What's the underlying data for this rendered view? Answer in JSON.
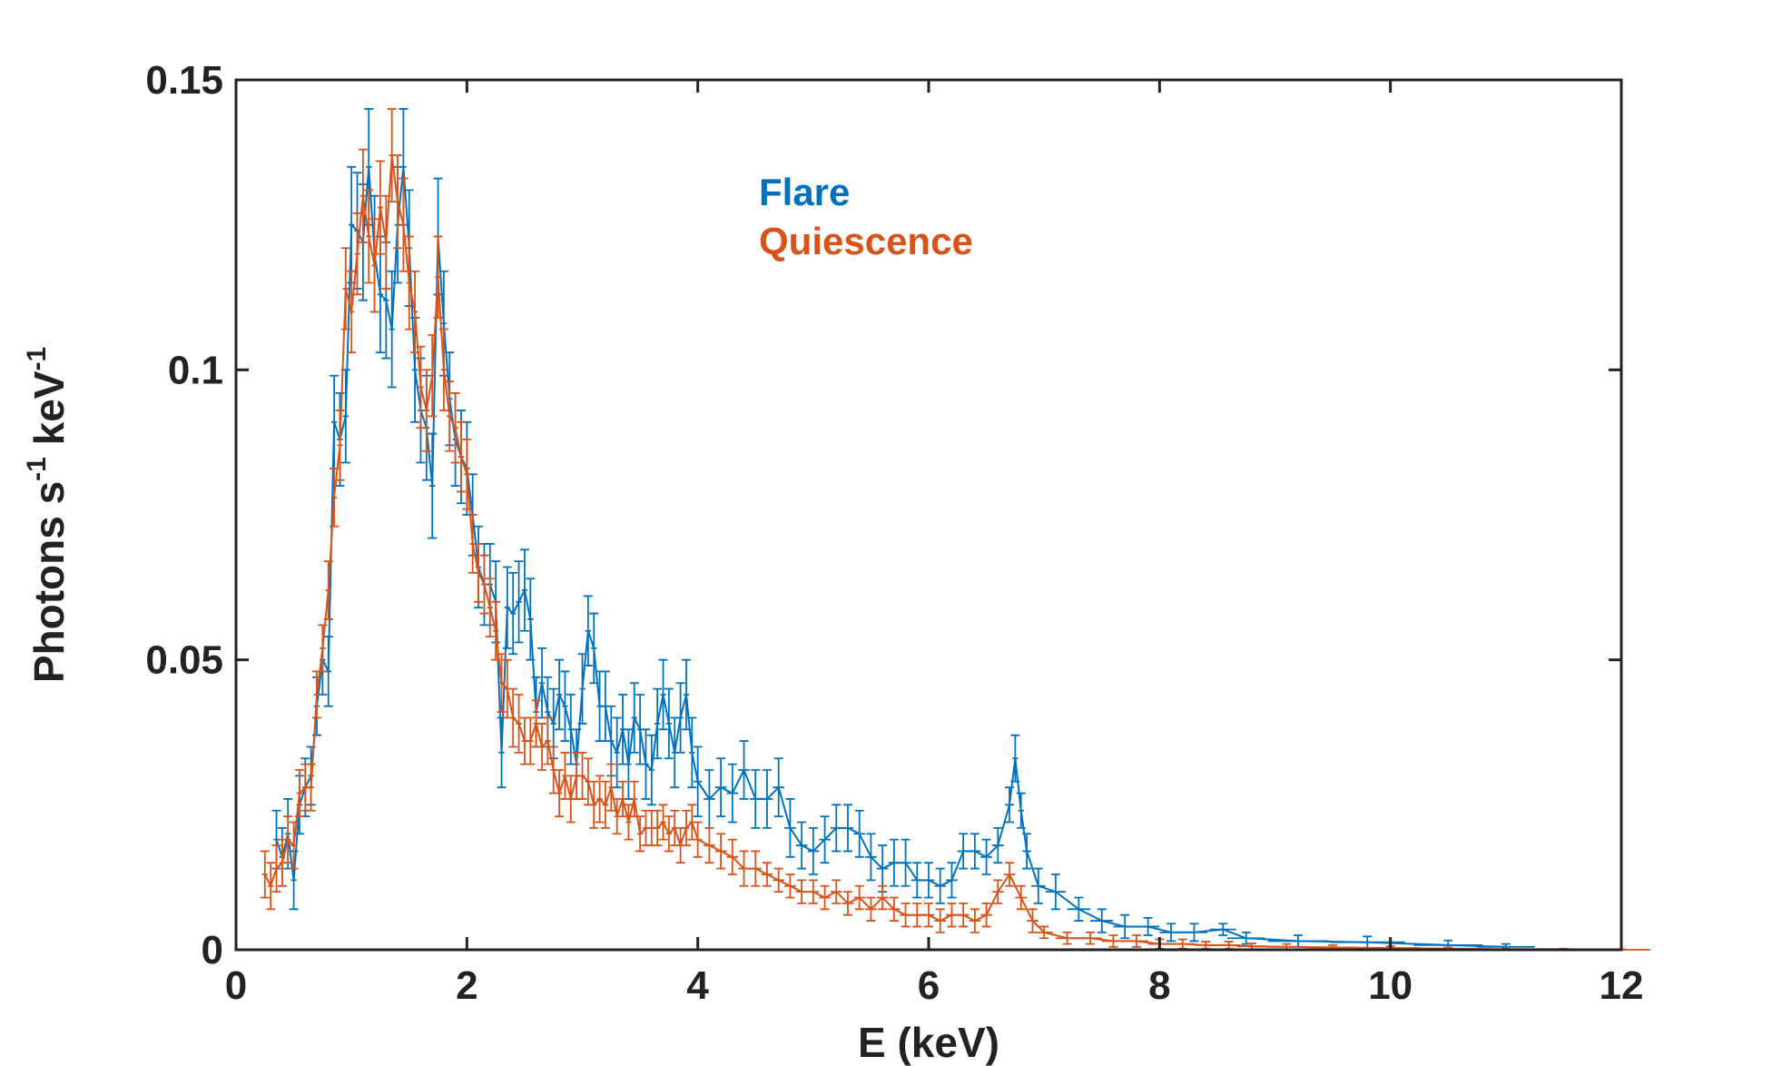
{
  "chart_data": {
    "type": "line",
    "title": "",
    "xlabel": "E (keV)",
    "ylabel": {
      "base": "Photons s",
      "sup1": "-1",
      "mid": " keV",
      "sup2": "-1"
    },
    "xlim": [
      0,
      12
    ],
    "ylim": [
      0,
      0.15
    ],
    "xticks": [
      0,
      2,
      4,
      6,
      8,
      10,
      12
    ],
    "xtick_labels": [
      "0",
      "2",
      "4",
      "6",
      "8",
      "10",
      "12"
    ],
    "yticks": [
      0,
      0.05,
      0.1,
      0.15
    ],
    "ytick_labels": [
      "0",
      "0.05",
      "0.1",
      "0.15"
    ],
    "grid": false,
    "legend_position": "top-center",
    "series": [
      {
        "name": "Flare",
        "color": "#0072BD",
        "points": [
          [
            0.35,
            0.019,
            0.005
          ],
          [
            0.4,
            0.016,
            0.005
          ],
          [
            0.45,
            0.02,
            0.006
          ],
          [
            0.5,
            0.012,
            0.005
          ],
          [
            0.55,
            0.025,
            0.005
          ],
          [
            0.6,
            0.028,
            0.005
          ],
          [
            0.65,
            0.03,
            0.005
          ],
          [
            0.7,
            0.042,
            0.005
          ],
          [
            0.75,
            0.05,
            0.006
          ],
          [
            0.8,
            0.048,
            0.006
          ],
          [
            0.85,
            0.091,
            0.008
          ],
          [
            0.9,
            0.088,
            0.008
          ],
          [
            0.95,
            0.092,
            0.008
          ],
          [
            1.0,
            0.125,
            0.01
          ],
          [
            1.05,
            0.124,
            0.01
          ],
          [
            1.1,
            0.122,
            0.01
          ],
          [
            1.15,
            0.135,
            0.01
          ],
          [
            1.2,
            0.12,
            0.01
          ],
          [
            1.25,
            0.113,
            0.01
          ],
          [
            1.3,
            0.112,
            0.01
          ],
          [
            1.35,
            0.107,
            0.01
          ],
          [
            1.4,
            0.125,
            0.01
          ],
          [
            1.45,
            0.135,
            0.01
          ],
          [
            1.5,
            0.121,
            0.01
          ],
          [
            1.55,
            0.1,
            0.009
          ],
          [
            1.6,
            0.093,
            0.009
          ],
          [
            1.65,
            0.09,
            0.009
          ],
          [
            1.7,
            0.08,
            0.009
          ],
          [
            1.75,
            0.123,
            0.01
          ],
          [
            1.8,
            0.108,
            0.009
          ],
          [
            1.85,
            0.095,
            0.008
          ],
          [
            1.9,
            0.088,
            0.008
          ],
          [
            1.95,
            0.085,
            0.008
          ],
          [
            2.0,
            0.083,
            0.008
          ],
          [
            2.05,
            0.075,
            0.007
          ],
          [
            2.1,
            0.066,
            0.007
          ],
          [
            2.15,
            0.063,
            0.007
          ],
          [
            2.2,
            0.063,
            0.007
          ],
          [
            2.25,
            0.06,
            0.007
          ],
          [
            2.3,
            0.034,
            0.006
          ],
          [
            2.35,
            0.059,
            0.007
          ],
          [
            2.4,
            0.058,
            0.007
          ],
          [
            2.45,
            0.06,
            0.007
          ],
          [
            2.5,
            0.062,
            0.007
          ],
          [
            2.55,
            0.057,
            0.007
          ],
          [
            2.6,
            0.041,
            0.006
          ],
          [
            2.65,
            0.046,
            0.006
          ],
          [
            2.7,
            0.041,
            0.006
          ],
          [
            2.75,
            0.039,
            0.006
          ],
          [
            2.8,
            0.044,
            0.006
          ],
          [
            2.85,
            0.042,
            0.006
          ],
          [
            2.9,
            0.038,
            0.006
          ],
          [
            2.95,
            0.032,
            0.006
          ],
          [
            3.0,
            0.045,
            0.006
          ],
          [
            3.05,
            0.055,
            0.006
          ],
          [
            3.1,
            0.052,
            0.006
          ],
          [
            3.15,
            0.042,
            0.006
          ],
          [
            3.2,
            0.042,
            0.006
          ],
          [
            3.25,
            0.036,
            0.006
          ],
          [
            3.3,
            0.034,
            0.006
          ],
          [
            3.35,
            0.038,
            0.006
          ],
          [
            3.4,
            0.032,
            0.006
          ],
          [
            3.45,
            0.04,
            0.006
          ],
          [
            3.5,
            0.038,
            0.006
          ],
          [
            3.55,
            0.032,
            0.006
          ],
          [
            3.6,
            0.031,
            0.006
          ],
          [
            3.65,
            0.039,
            0.006
          ],
          [
            3.7,
            0.044,
            0.006
          ],
          [
            3.75,
            0.039,
            0.006
          ],
          [
            3.8,
            0.034,
            0.006
          ],
          [
            3.85,
            0.04,
            0.006
          ],
          [
            3.9,
            0.044,
            0.006
          ],
          [
            3.95,
            0.034,
            0.006
          ],
          [
            4.0,
            0.029,
            0.006
          ],
          [
            4.1,
            0.026,
            0.005
          ],
          [
            4.2,
            0.028,
            0.005
          ],
          [
            4.3,
            0.027,
            0.005
          ],
          [
            4.4,
            0.031,
            0.005
          ],
          [
            4.5,
            0.026,
            0.005
          ],
          [
            4.6,
            0.026,
            0.005
          ],
          [
            4.7,
            0.028,
            0.005
          ],
          [
            4.8,
            0.021,
            0.005
          ],
          [
            4.9,
            0.018,
            0.004
          ],
          [
            5.0,
            0.017,
            0.004
          ],
          [
            5.1,
            0.019,
            0.004
          ],
          [
            5.2,
            0.021,
            0.004
          ],
          [
            5.3,
            0.021,
            0.004
          ],
          [
            5.4,
            0.02,
            0.004
          ],
          [
            5.5,
            0.016,
            0.004
          ],
          [
            5.6,
            0.014,
            0.004
          ],
          [
            5.7,
            0.015,
            0.004
          ],
          [
            5.8,
            0.015,
            0.004
          ],
          [
            5.9,
            0.012,
            0.003
          ],
          [
            6.0,
            0.012,
            0.003
          ],
          [
            6.1,
            0.011,
            0.003
          ],
          [
            6.2,
            0.012,
            0.003
          ],
          [
            6.3,
            0.017,
            0.003
          ],
          [
            6.4,
            0.017,
            0.003
          ],
          [
            6.5,
            0.016,
            0.003
          ],
          [
            6.6,
            0.018,
            0.003
          ],
          [
            6.7,
            0.025,
            0.003
          ],
          [
            6.75,
            0.033,
            0.004
          ],
          [
            6.8,
            0.024,
            0.003
          ],
          [
            6.85,
            0.017,
            0.003
          ],
          [
            6.95,
            0.011,
            0.003
          ],
          [
            7.1,
            0.01,
            0.003
          ],
          [
            7.3,
            0.007,
            0.002
          ],
          [
            7.5,
            0.005,
            0.002
          ],
          [
            7.7,
            0.004,
            0.002
          ],
          [
            7.9,
            0.004,
            0.0015
          ],
          [
            8.1,
            0.003,
            0.0015
          ],
          [
            8.3,
            0.003,
            0.0015
          ],
          [
            8.55,
            0.0035,
            0.001
          ],
          [
            8.75,
            0.002,
            0.001
          ],
          [
            9.2,
            0.0015,
            0.001
          ],
          [
            9.8,
            0.0013,
            0.001
          ],
          [
            10.5,
            0.0008,
            0.0008
          ],
          [
            11.0,
            0.0005,
            0.0005
          ]
        ]
      },
      {
        "name": "Quiescence",
        "color": "#D95319",
        "points": [
          [
            0.25,
            0.013,
            0.004
          ],
          [
            0.3,
            0.011,
            0.004
          ],
          [
            0.35,
            0.014,
            0.004
          ],
          [
            0.4,
            0.015,
            0.004
          ],
          [
            0.45,
            0.019,
            0.004
          ],
          [
            0.5,
            0.018,
            0.004
          ],
          [
            0.55,
            0.027,
            0.004
          ],
          [
            0.6,
            0.028,
            0.004
          ],
          [
            0.65,
            0.028,
            0.004
          ],
          [
            0.7,
            0.044,
            0.004
          ],
          [
            0.75,
            0.052,
            0.004
          ],
          [
            0.8,
            0.062,
            0.005
          ],
          [
            0.85,
            0.078,
            0.005
          ],
          [
            0.9,
            0.087,
            0.006
          ],
          [
            0.95,
            0.114,
            0.007
          ],
          [
            1.0,
            0.11,
            0.007
          ],
          [
            1.05,
            0.12,
            0.007
          ],
          [
            1.1,
            0.13,
            0.008
          ],
          [
            1.15,
            0.123,
            0.008
          ],
          [
            1.2,
            0.118,
            0.008
          ],
          [
            1.25,
            0.128,
            0.008
          ],
          [
            1.3,
            0.122,
            0.008
          ],
          [
            1.35,
            0.137,
            0.008
          ],
          [
            1.4,
            0.129,
            0.008
          ],
          [
            1.45,
            0.125,
            0.008
          ],
          [
            1.5,
            0.115,
            0.008
          ],
          [
            1.55,
            0.11,
            0.007
          ],
          [
            1.6,
            0.097,
            0.007
          ],
          [
            1.65,
            0.093,
            0.007
          ],
          [
            1.7,
            0.099,
            0.007
          ],
          [
            1.75,
            0.116,
            0.007
          ],
          [
            1.8,
            0.1,
            0.007
          ],
          [
            1.85,
            0.092,
            0.006
          ],
          [
            1.9,
            0.09,
            0.006
          ],
          [
            1.95,
            0.085,
            0.006
          ],
          [
            2.0,
            0.082,
            0.006
          ],
          [
            2.05,
            0.07,
            0.005
          ],
          [
            2.1,
            0.065,
            0.005
          ],
          [
            2.15,
            0.063,
            0.005
          ],
          [
            2.2,
            0.059,
            0.005
          ],
          [
            2.25,
            0.055,
            0.005
          ],
          [
            2.3,
            0.046,
            0.005
          ],
          [
            2.35,
            0.045,
            0.005
          ],
          [
            2.4,
            0.04,
            0.005
          ],
          [
            2.45,
            0.039,
            0.005
          ],
          [
            2.5,
            0.036,
            0.004
          ],
          [
            2.55,
            0.036,
            0.004
          ],
          [
            2.6,
            0.039,
            0.004
          ],
          [
            2.65,
            0.035,
            0.004
          ],
          [
            2.7,
            0.036,
            0.004
          ],
          [
            2.75,
            0.031,
            0.004
          ],
          [
            2.8,
            0.027,
            0.004
          ],
          [
            2.85,
            0.03,
            0.004
          ],
          [
            2.9,
            0.026,
            0.004
          ],
          [
            2.95,
            0.03,
            0.004
          ],
          [
            3.0,
            0.03,
            0.004
          ],
          [
            3.05,
            0.029,
            0.004
          ],
          [
            3.1,
            0.025,
            0.004
          ],
          [
            3.15,
            0.026,
            0.004
          ],
          [
            3.2,
            0.025,
            0.004
          ],
          [
            3.25,
            0.028,
            0.004
          ],
          [
            3.3,
            0.023,
            0.003
          ],
          [
            3.35,
            0.026,
            0.003
          ],
          [
            3.4,
            0.022,
            0.003
          ],
          [
            3.45,
            0.026,
            0.003
          ],
          [
            3.5,
            0.02,
            0.003
          ],
          [
            3.55,
            0.021,
            0.003
          ],
          [
            3.6,
            0.021,
            0.003
          ],
          [
            3.65,
            0.021,
            0.003
          ],
          [
            3.7,
            0.022,
            0.003
          ],
          [
            3.75,
            0.02,
            0.003
          ],
          [
            3.8,
            0.021,
            0.003
          ],
          [
            3.85,
            0.018,
            0.003
          ],
          [
            3.9,
            0.021,
            0.003
          ],
          [
            3.95,
            0.022,
            0.003
          ],
          [
            4.0,
            0.019,
            0.003
          ],
          [
            4.1,
            0.018,
            0.003
          ],
          [
            4.2,
            0.017,
            0.003
          ],
          [
            4.3,
            0.016,
            0.003
          ],
          [
            4.4,
            0.014,
            0.003
          ],
          [
            4.5,
            0.014,
            0.003
          ],
          [
            4.6,
            0.013,
            0.002
          ],
          [
            4.7,
            0.012,
            0.002
          ],
          [
            4.8,
            0.011,
            0.002
          ],
          [
            4.9,
            0.01,
            0.002
          ],
          [
            5.0,
            0.01,
            0.002
          ],
          [
            5.1,
            0.009,
            0.002
          ],
          [
            5.2,
            0.01,
            0.002
          ],
          [
            5.3,
            0.008,
            0.002
          ],
          [
            5.4,
            0.009,
            0.002
          ],
          [
            5.5,
            0.007,
            0.002
          ],
          [
            5.6,
            0.009,
            0.002
          ],
          [
            5.7,
            0.007,
            0.002
          ],
          [
            5.8,
            0.006,
            0.002
          ],
          [
            5.9,
            0.006,
            0.002
          ],
          [
            6.0,
            0.006,
            0.002
          ],
          [
            6.1,
            0.005,
            0.002
          ],
          [
            6.2,
            0.006,
            0.002
          ],
          [
            6.3,
            0.006,
            0.002
          ],
          [
            6.4,
            0.005,
            0.002
          ],
          [
            6.5,
            0.006,
            0.002
          ],
          [
            6.6,
            0.01,
            0.002
          ],
          [
            6.7,
            0.013,
            0.002
          ],
          [
            6.8,
            0.009,
            0.002
          ],
          [
            6.9,
            0.005,
            0.002
          ],
          [
            7.0,
            0.003,
            0.001
          ],
          [
            7.2,
            0.002,
            0.001
          ],
          [
            7.4,
            0.002,
            0.001
          ],
          [
            7.6,
            0.0015,
            0.001
          ],
          [
            7.8,
            0.0015,
            0.001
          ],
          [
            8.0,
            0.001,
            0.0008
          ],
          [
            8.2,
            0.001,
            0.0008
          ],
          [
            8.4,
            0.0008,
            0.0006
          ],
          [
            8.6,
            0.0008,
            0.0006
          ],
          [
            8.8,
            0.0006,
            0.0005
          ],
          [
            9.1,
            0.0005,
            0.0005
          ],
          [
            9.5,
            0.0004,
            0.0004
          ],
          [
            10.0,
            0.0003,
            0.0003
          ],
          [
            10.5,
            0.0002,
            0.0002
          ],
          [
            11.0,
            0.0001,
            0.0001
          ],
          [
            11.5,
            0.0001,
            0.0001
          ],
          [
            12.0,
            0.0,
            0.0001
          ]
        ]
      }
    ]
  }
}
